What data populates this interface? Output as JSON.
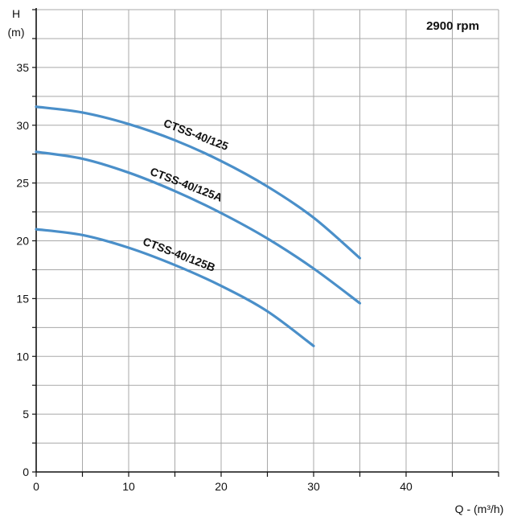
{
  "chart_data": {
    "type": "line",
    "annotation": "2900 rpm",
    "ylabel": "H",
    "ylabel_unit": "(m)",
    "xlabel": "Q - (m³/h)",
    "xlim": [
      0,
      50
    ],
    "ylim": [
      0,
      40
    ],
    "x_ticks": [
      0,
      10,
      20,
      30,
      40
    ],
    "y_ticks": [
      0,
      5,
      10,
      15,
      20,
      25,
      30,
      35
    ],
    "x_grid_step": 5,
    "y_grid_step": 2.5,
    "grid": true,
    "line_color": "#4a8fc9",
    "series": [
      {
        "name": "CTSS-40/125",
        "x": [
          0,
          5,
          10,
          15,
          20,
          25,
          30,
          35
        ],
        "y": [
          31.6,
          31.1,
          30.1,
          28.7,
          26.9,
          24.7,
          22.0,
          18.5
        ]
      },
      {
        "name": "CTSS-40/125A",
        "x": [
          0,
          5,
          10,
          15,
          20,
          25,
          30,
          35
        ],
        "y": [
          27.7,
          27.1,
          25.9,
          24.3,
          22.4,
          20.2,
          17.6,
          14.6
        ]
      },
      {
        "name": "CTSS-40/125B",
        "x": [
          0,
          5,
          10,
          15,
          20,
          25,
          30
        ],
        "y": [
          21.0,
          20.5,
          19.4,
          17.9,
          16.1,
          13.9,
          10.9
        ]
      }
    ]
  }
}
